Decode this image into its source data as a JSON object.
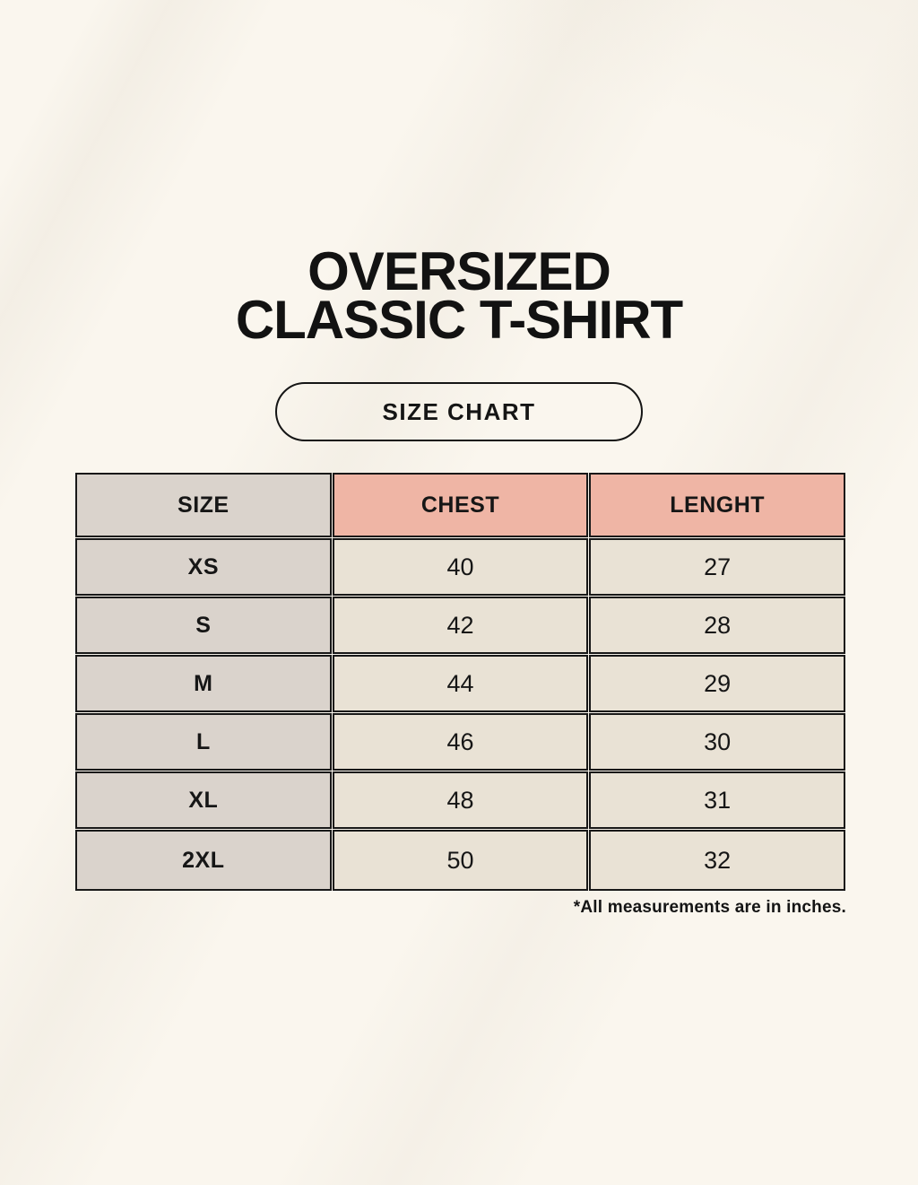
{
  "page": {
    "title_line1": "OVERSIZED",
    "title_line2": "CLASSIC T-SHIRT",
    "badge_label": "SIZE CHART",
    "footnote": "*All measurements are in inches."
  },
  "colors": {
    "page_background": "#FAF6EE",
    "size_column_gray": "#DAD3CC",
    "header_salmon": "#EFB5A5",
    "data_cell_cream": "#E9E2D5",
    "ink": "#161616"
  },
  "chart_data": {
    "type": "table",
    "title": "OVERSIZED CLASSIC T-SHIRT",
    "subtitle": "SIZE CHART",
    "columns": [
      "SIZE",
      "CHEST",
      "LENGHT"
    ],
    "rows": [
      {
        "size": "XS",
        "chest": "40",
        "lenght": "27"
      },
      {
        "size": "S",
        "chest": "42",
        "lenght": "28"
      },
      {
        "size": "M",
        "chest": "44",
        "lenght": "29"
      },
      {
        "size": "L",
        "chest": "46",
        "lenght": "30"
      },
      {
        "size": "XL",
        "chest": "48",
        "lenght": "31"
      },
      {
        "size": "2XL",
        "chest": "50",
        "lenght": "32"
      }
    ],
    "units_note": "*All measurements are in inches."
  }
}
